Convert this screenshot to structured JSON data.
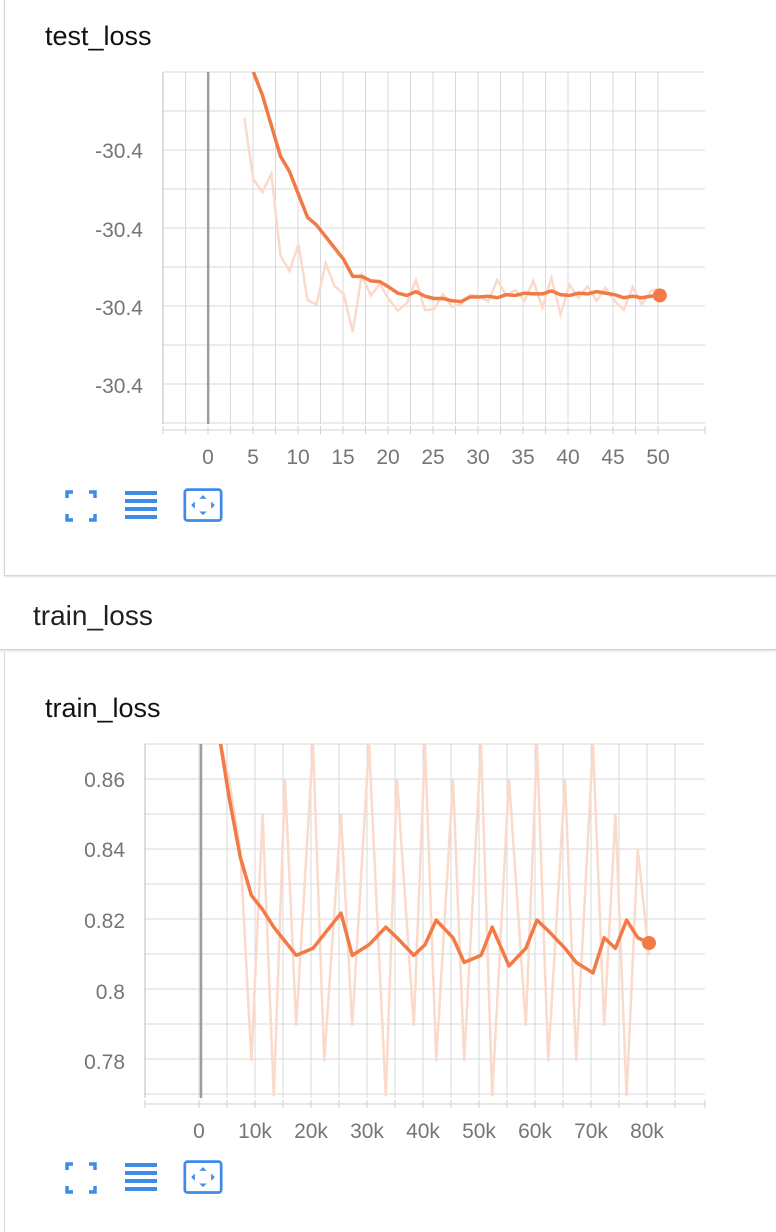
{
  "colors": {
    "accent": "#f27a45",
    "accent_light": "#fbd9cb",
    "icon": "#3d8ce8",
    "grid": "#d9d9d9",
    "zero_line": "#9e9e9e"
  },
  "icons": [
    "fit-to-screen-icon",
    "toggle-log-lines-icon",
    "reset-zoom-icon"
  ],
  "group_header": {
    "label": "train_loss"
  },
  "cards": [
    {
      "title": "test_loss"
    },
    {
      "title": "train_loss"
    }
  ],
  "chart_data": [
    {
      "type": "line",
      "title": "test_loss",
      "x_ticks": [
        "0",
        "5",
        "10",
        "15",
        "20",
        "25",
        "30",
        "35",
        "40",
        "45",
        "50"
      ],
      "y_ticks": [
        "-30.4",
        "-30.4",
        "-30.4",
        "-30.4"
      ],
      "xlim": [
        -5,
        55
      ],
      "ylim": [
        -30.4405,
        -30.3945
      ],
      "grid": true,
      "series": [
        {
          "x": [
            5,
            6,
            7,
            8,
            9,
            10,
            11,
            12,
            13,
            14,
            15,
            16,
            17,
            18,
            19,
            20,
            21,
            22,
            23,
            24,
            25,
            26,
            27,
            28,
            29,
            30,
            31,
            32,
            33,
            34,
            35,
            36,
            37,
            38,
            39,
            40,
            41,
            42,
            43,
            44,
            45,
            46,
            47,
            48,
            49,
            50
          ],
          "values": [
            -30.3945,
            -30.3975,
            -30.4015,
            -30.4055,
            -30.4075,
            -30.4105,
            -30.4135,
            -30.4145,
            -30.416,
            -30.4175,
            -30.419,
            -30.4212,
            -30.4212,
            -30.4218,
            -30.4219,
            -30.4226,
            -30.4234,
            -30.4237,
            -30.4232,
            -30.4238,
            -30.4241,
            -30.4241,
            -30.4244,
            -30.4245,
            -30.4239,
            -30.4239,
            -30.4238,
            -30.424,
            -30.4236,
            -30.4237,
            -30.4234,
            -30.4235,
            -30.4235,
            -30.4231,
            -30.4236,
            -30.4237,
            -30.4234,
            -30.4235,
            -30.4232,
            -30.4234,
            -30.4236,
            -30.424,
            -30.4238,
            -30.424,
            -30.4238,
            -30.4237
          ]
        },
        {
          "x": [
            4,
            5,
            6,
            7,
            8,
            9,
            10,
            11,
            12,
            13,
            14,
            15,
            16,
            17,
            18,
            19,
            20,
            21,
            22,
            23,
            24,
            25,
            26,
            27,
            28,
            29,
            30,
            31,
            32,
            33,
            34,
            35,
            36,
            37,
            38,
            39,
            40,
            41,
            42,
            43,
            44,
            45,
            46,
            47,
            48,
            49,
            50
          ],
          "values": [
            -30.4005,
            -30.4085,
            -30.4102,
            -30.4078,
            -30.4185,
            -30.4205,
            -30.417,
            -30.4243,
            -30.4249,
            -30.4195,
            -30.4225,
            -30.4235,
            -30.4285,
            -30.421,
            -30.4237,
            -30.4222,
            -30.4242,
            -30.4257,
            -30.4247,
            -30.4217,
            -30.4256,
            -30.4255,
            -30.4235,
            -30.4252,
            -30.4248,
            -30.4236,
            -30.4238,
            -30.4245,
            -30.4217,
            -30.4237,
            -30.423,
            -30.4244,
            -30.4218,
            -30.4253,
            -30.4214,
            -30.4262,
            -30.4223,
            -30.424,
            -30.4225,
            -30.4244,
            -30.4227,
            -30.4244,
            -30.4256,
            -30.4226,
            -30.4249,
            -30.4231,
            -30.4228
          ]
        }
      ],
      "last_point": {
        "x": 50,
        "y": -30.4237
      }
    },
    {
      "type": "line",
      "title": "train_loss",
      "x_ticks": [
        "0",
        "10k",
        "20k",
        "30k",
        "40k",
        "50k",
        "60k",
        "70k",
        "80k"
      ],
      "y_ticks": [
        "0.86",
        "0.84",
        "0.82",
        "0.8",
        "0.78"
      ],
      "xlim": [
        -10000,
        90000
      ],
      "ylim": [
        0.7695,
        0.87
      ],
      "grid": true,
      "series": [
        {
          "x": [
            3500,
            5000,
            7000,
            9000,
            11000,
            13000,
            15000,
            17000,
            20000,
            22000,
            25000,
            27000,
            30000,
            33000,
            35000,
            38000,
            40000,
            42000,
            45000,
            47000,
            50000,
            52000,
            55000,
            58000,
            60000,
            62000,
            65000,
            67000,
            70000,
            72000,
            74000,
            76000,
            78000,
            80000
          ],
          "values": [
            0.87,
            0.855,
            0.838,
            0.827,
            0.823,
            0.818,
            0.814,
            0.81,
            0.812,
            0.816,
            0.822,
            0.81,
            0.813,
            0.818,
            0.815,
            0.81,
            0.813,
            0.82,
            0.815,
            0.808,
            0.81,
            0.818,
            0.807,
            0.812,
            0.82,
            0.817,
            0.812,
            0.808,
            0.805,
            0.815,
            0.812,
            0.82,
            0.815,
            0.8135
          ]
        },
        {
          "x": [
            3500,
            5000,
            7000,
            9000,
            11000,
            13000,
            15000,
            17000,
            20000,
            22000,
            25000,
            27000,
            30000,
            33000,
            35000,
            38000,
            40000,
            42000,
            45000,
            47000,
            50000,
            52000,
            55000,
            58000,
            60000,
            62000,
            65000,
            67000,
            70000,
            72000,
            74000,
            76000,
            78000,
            80000
          ],
          "values": [
            0.87,
            0.86,
            0.84,
            0.78,
            0.85,
            0.77,
            0.86,
            0.79,
            0.87,
            0.78,
            0.85,
            0.79,
            0.87,
            0.77,
            0.86,
            0.79,
            0.87,
            0.78,
            0.86,
            0.78,
            0.87,
            0.77,
            0.86,
            0.79,
            0.87,
            0.78,
            0.86,
            0.78,
            0.87,
            0.79,
            0.85,
            0.77,
            0.84,
            0.81
          ]
        }
      ],
      "last_point": {
        "x": 80000,
        "y": 0.8135
      }
    }
  ]
}
